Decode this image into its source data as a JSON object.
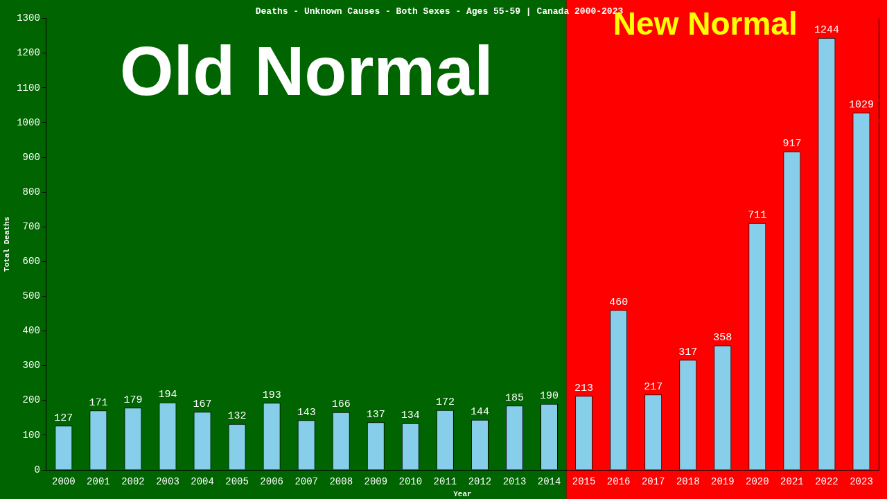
{
  "chart_data": {
    "type": "bar",
    "title": "Deaths - Unknown Causes - Both Sexes - Ages 55-59 | Canada 2000-2023",
    "xlabel": "Year",
    "ylabel": "Total Deaths",
    "categories": [
      "2000",
      "2001",
      "2002",
      "2003",
      "2004",
      "2005",
      "2006",
      "2007",
      "2008",
      "2009",
      "2010",
      "2011",
      "2012",
      "2013",
      "2014",
      "2015",
      "2016",
      "2017",
      "2018",
      "2019",
      "2020",
      "2021",
      "2022",
      "2023"
    ],
    "values": [
      127,
      171,
      179,
      194,
      167,
      132,
      193,
      143,
      166,
      137,
      134,
      172,
      144,
      185,
      190,
      213,
      460,
      217,
      317,
      358,
      711,
      917,
      1244,
      1029
    ],
    "color": "#87ceeb",
    "ylim": [
      0,
      1300
    ],
    "yticks": [
      0,
      100,
      200,
      300,
      400,
      500,
      600,
      700,
      800,
      900,
      1000,
      1100,
      1200,
      1300
    ],
    "grid": false,
    "legend": false,
    "data_labels": true,
    "bands": [
      {
        "axis": "x",
        "from": "2000",
        "to": "2014",
        "label": "Old Normal",
        "color": "#006400"
      },
      {
        "axis": "x",
        "from": "2015",
        "to": "2023",
        "label": "New Normal",
        "color": "#ff0000"
      }
    ]
  }
}
